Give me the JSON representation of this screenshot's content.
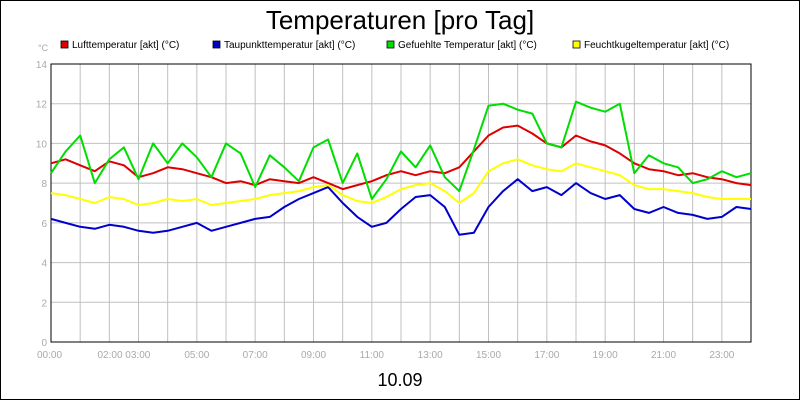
{
  "chart_data": {
    "type": "line",
    "title": "Temperaturen [pro Tag]",
    "y_unit": "°C",
    "xlabel": "10.09",
    "ylim": [
      0,
      14
    ],
    "y_ticks": [
      0,
      2,
      4,
      6,
      8,
      10,
      12,
      14
    ],
    "x_range": [
      0,
      24
    ],
    "x_ticks": [
      {
        "t": 0,
        "label": "00:00"
      },
      {
        "t": 2.5,
        "label": "02:00 03:00"
      },
      {
        "t": 5,
        "label": "05:00"
      },
      {
        "t": 7,
        "label": "07:00"
      },
      {
        "t": 9,
        "label": "09:00"
      },
      {
        "t": 11,
        "label": "11:00"
      },
      {
        "t": 13,
        "label": "13:00"
      },
      {
        "t": 15,
        "label": "15:00"
      },
      {
        "t": 17,
        "label": "17:00"
      },
      {
        "t": 19,
        "label": "19:00"
      },
      {
        "t": 21,
        "label": "21:00"
      },
      {
        "t": 23,
        "label": "23:00"
      }
    ],
    "grid": true,
    "legend_position": "top",
    "series": [
      {
        "name": "Lufttemperatur [akt] (°C)",
        "color": "#dd0000",
        "x": [
          0,
          0.5,
          1,
          1.5,
          2,
          2.5,
          3,
          3.5,
          4,
          4.5,
          5,
          5.5,
          6,
          6.5,
          7,
          7.5,
          8,
          8.5,
          9,
          9.5,
          10,
          10.5,
          11,
          11.5,
          12,
          12.5,
          13,
          13.5,
          14,
          14.5,
          15,
          15.5,
          16,
          16.5,
          17,
          17.5,
          18,
          18.5,
          19,
          19.5,
          20,
          20.5,
          21,
          21.5,
          22,
          22.5,
          23,
          23.5,
          24
        ],
        "values": [
          9.0,
          9.2,
          8.9,
          8.6,
          9.1,
          8.9,
          8.3,
          8.5,
          8.8,
          8.7,
          8.5,
          8.3,
          8.0,
          8.1,
          7.9,
          8.2,
          8.1,
          8.0,
          8.3,
          8.0,
          7.7,
          7.9,
          8.1,
          8.4,
          8.6,
          8.4,
          8.6,
          8.5,
          8.8,
          9.6,
          10.4,
          10.8,
          10.9,
          10.5,
          10.0,
          9.8,
          10.4,
          10.1,
          9.9,
          9.5,
          9.0,
          8.7,
          8.6,
          8.4,
          8.5,
          8.3,
          8.2,
          8.0,
          7.9
        ]
      },
      {
        "name": "Taupunkttemperatur [akt] (°C)",
        "color": "#0000cc",
        "x": [
          0,
          0.5,
          1,
          1.5,
          2,
          2.5,
          3,
          3.5,
          4,
          4.5,
          5,
          5.5,
          6,
          6.5,
          7,
          7.5,
          8,
          8.5,
          9,
          9.5,
          10,
          10.5,
          11,
          11.5,
          12,
          12.5,
          13,
          13.5,
          14,
          14.5,
          15,
          15.5,
          16,
          16.5,
          17,
          17.5,
          18,
          18.5,
          19,
          19.5,
          20,
          20.5,
          21,
          21.5,
          22,
          22.5,
          23,
          23.5,
          24
        ],
        "values": [
          6.2,
          6.0,
          5.8,
          5.7,
          5.9,
          5.8,
          5.6,
          5.5,
          5.6,
          5.8,
          6.0,
          5.6,
          5.8,
          6.0,
          6.2,
          6.3,
          6.8,
          7.2,
          7.5,
          7.8,
          7.0,
          6.3,
          5.8,
          6.0,
          6.7,
          7.3,
          7.4,
          6.8,
          5.4,
          5.5,
          6.8,
          7.6,
          8.2,
          7.6,
          7.8,
          7.4,
          8.0,
          7.5,
          7.2,
          7.4,
          6.7,
          6.5,
          6.8,
          6.5,
          6.4,
          6.2,
          6.3,
          6.8,
          6.7
        ]
      },
      {
        "name": "Gefuehlte Temperatur [akt] (°C)",
        "color": "#00dd00",
        "x": [
          0,
          0.5,
          1,
          1.5,
          2,
          2.5,
          3,
          3.5,
          4,
          4.5,
          5,
          5.5,
          6,
          6.5,
          7,
          7.5,
          8,
          8.5,
          9,
          9.5,
          10,
          10.5,
          11,
          11.5,
          12,
          12.5,
          13,
          13.5,
          14,
          14.5,
          15,
          15.5,
          16,
          16.5,
          17,
          17.5,
          18,
          18.5,
          19,
          19.5,
          20,
          20.5,
          21,
          21.5,
          22,
          22.5,
          23,
          23.5,
          24
        ],
        "values": [
          8.5,
          9.6,
          10.4,
          8.0,
          9.2,
          9.8,
          8.2,
          10.0,
          9.0,
          10.0,
          9.3,
          8.3,
          10.0,
          9.5,
          7.8,
          9.4,
          8.8,
          8.1,
          9.8,
          10.2,
          8.0,
          9.5,
          7.2,
          8.2,
          9.6,
          8.8,
          9.9,
          8.3,
          7.6,
          9.7,
          11.9,
          12.0,
          11.7,
          11.5,
          10.0,
          9.8,
          12.1,
          11.8,
          11.6,
          12.0,
          8.5,
          9.4,
          9.0,
          8.8,
          8.0,
          8.2,
          8.6,
          8.3,
          8.5
        ]
      },
      {
        "name": "Feuchtkugeltemperatur [akt] (°C)",
        "color": "#ffff00",
        "x": [
          0,
          0.5,
          1,
          1.5,
          2,
          2.5,
          3,
          3.5,
          4,
          4.5,
          5,
          5.5,
          6,
          6.5,
          7,
          7.5,
          8,
          8.5,
          9,
          9.5,
          10,
          10.5,
          11,
          11.5,
          12,
          12.5,
          13,
          13.5,
          14,
          14.5,
          15,
          15.5,
          16,
          16.5,
          17,
          17.5,
          18,
          18.5,
          19,
          19.5,
          20,
          20.5,
          21,
          21.5,
          22,
          22.5,
          23,
          23.5,
          24
        ],
        "values": [
          7.5,
          7.4,
          7.2,
          7.0,
          7.3,
          7.2,
          6.9,
          7.0,
          7.2,
          7.1,
          7.2,
          6.9,
          7.0,
          7.1,
          7.2,
          7.4,
          7.5,
          7.6,
          7.8,
          7.9,
          7.4,
          7.1,
          7.0,
          7.3,
          7.7,
          7.9,
          8.0,
          7.6,
          7.0,
          7.5,
          8.6,
          9.0,
          9.2,
          8.9,
          8.7,
          8.6,
          9.0,
          8.8,
          8.6,
          8.4,
          7.9,
          7.7,
          7.7,
          7.6,
          7.5,
          7.3,
          7.2,
          7.2,
          7.2
        ]
      }
    ]
  }
}
